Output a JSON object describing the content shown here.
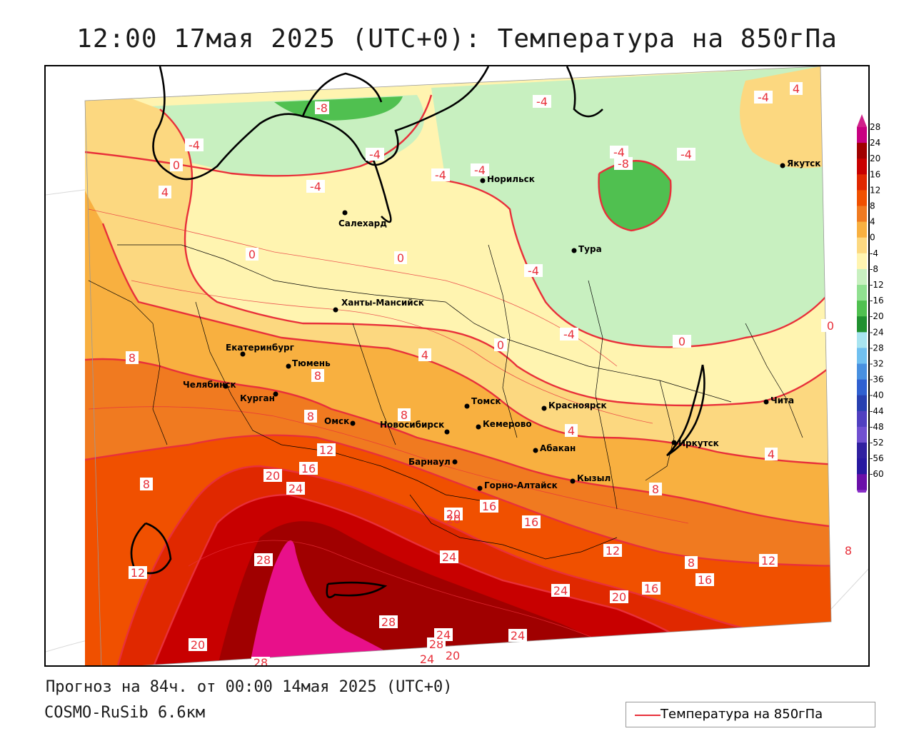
{
  "title": "12:00 17мая 2025 (UTC+0): Температура на 850гПа",
  "forecast_info": "Прогноз на 84ч. от 00:00 14мая 2025 (UTC+0)",
  "model_name": "COSMO-RuSib 6.6км",
  "legend": {
    "series_label": "Температура на 850гПа",
    "line_color": "#e8303a"
  },
  "colorbar": {
    "ticks": [
      "28",
      "24",
      "20",
      "16",
      "12",
      "8",
      "4",
      "0",
      "-4",
      "-8",
      "-12",
      "-16",
      "-20",
      "-24",
      "-28",
      "-32",
      "-36",
      "-40",
      "-44",
      "-48",
      "-52",
      "-56",
      "-60"
    ],
    "colors": [
      "#c80080",
      "#a00000",
      "#c80000",
      "#e02800",
      "#f05000",
      "#f07a20",
      "#f8b040",
      "#fcd880",
      "#fff4b0",
      "#c8f0c0",
      "#90e090",
      "#50c050",
      "#209030",
      "#a8e4f0",
      "#70c0f0",
      "#4890e0",
      "#3060d0",
      "#2840b0",
      "#5040c0",
      "#7050d0",
      "#3020a0",
      "#2818a0",
      "#6a10a8"
    ],
    "top_arrow_color": "#d0208a",
    "bottom_arrow_color": "#8a30c8"
  },
  "cities": [
    {
      "name": "Якутск"
    },
    {
      "name": "Норильск"
    },
    {
      "name": "Салехард"
    },
    {
      "name": "Тура"
    },
    {
      "name": "Ханты-Мансийск"
    },
    {
      "name": "Екатеринбург"
    },
    {
      "name": "Тюмень"
    },
    {
      "name": "Челябинск"
    },
    {
      "name": "Курган"
    },
    {
      "name": "Омск"
    },
    {
      "name": "Новосибирск"
    },
    {
      "name": "Томск"
    },
    {
      "name": "Красноярск"
    },
    {
      "name": "Кемерово"
    },
    {
      "name": "Барнаул"
    },
    {
      "name": "Абакан"
    },
    {
      "name": "Горно-Алтайск"
    },
    {
      "name": "Кызыл"
    },
    {
      "name": "Иркутск"
    },
    {
      "name": "Чита"
    }
  ],
  "isotherm_labels": [
    "-8",
    "-4",
    "-4",
    "-4",
    "-4",
    "-4",
    "-4",
    "-4",
    "-4",
    "-8",
    "-4",
    "-4",
    "-4",
    "0",
    "0",
    "0",
    "4",
    "4",
    "0",
    "0",
    "0",
    "4",
    "8",
    "8",
    "8",
    "8",
    "4",
    "8",
    "12",
    "16",
    "20",
    "24",
    "20",
    "16",
    "16",
    "28",
    "24",
    "24",
    "20",
    "16",
    "12",
    "8",
    "16",
    "12",
    "28",
    "28",
    "24",
    "24",
    "20",
    "24",
    "20",
    "28",
    "20",
    "12",
    "8",
    "8",
    "4"
  ]
}
